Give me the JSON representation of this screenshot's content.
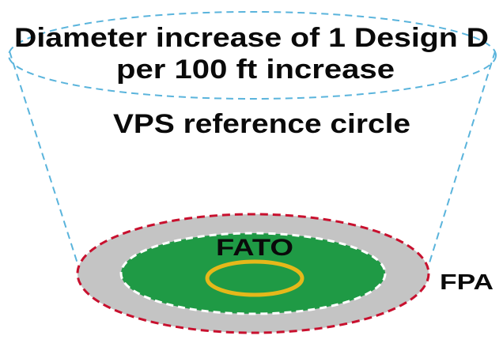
{
  "diagram": {
    "title_line1": "Diameter increase of 1 Design D",
    "title_line2": "per 100 ft increase",
    "vps_label": "VPS reference circle",
    "fato_label": "FATO",
    "fpa_label": "FPA"
  },
  "colors": {
    "vps_outline": "#5ab4dc",
    "fpa_fill": "#c4c4c4",
    "fpa_outline": "#c8102e",
    "fato_fill": "#1f9a45",
    "fato_outline": "#ffffff",
    "tlof_ring": "#e5b81a",
    "text": "#0a0a0a"
  }
}
